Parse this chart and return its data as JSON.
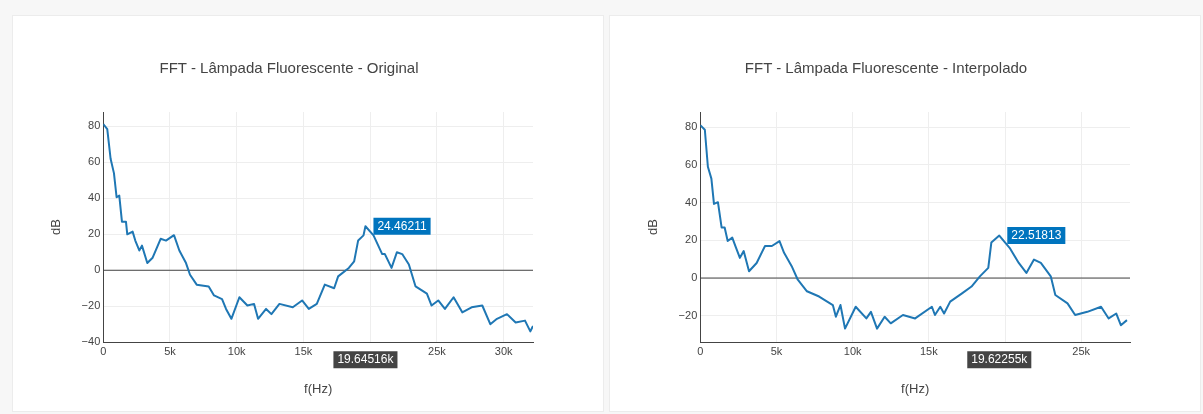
{
  "chart_data": [
    {
      "type": "line",
      "title": "FFT - Lâmpada Fluorescente - Original",
      "xlabel": "f(Hz)",
      "ylabel": "dB",
      "series": [
        {
          "color": "#1f77b4",
          "x": [
            0,
            300,
            550,
            800,
            1000,
            1200,
            1400,
            1700,
            1800,
            2200,
            2400,
            2700,
            2900,
            3300,
            3700,
            4300,
            4700,
            5300,
            5700,
            6200,
            6500,
            7000,
            7900,
            8300,
            8900,
            9200,
            9600,
            10200,
            10800,
            11300,
            11600,
            12200,
            12600,
            13200,
            14200,
            14900,
            15400,
            16000,
            16600,
            17300,
            17600,
            18400,
            18800,
            19100,
            19500,
            19645.16,
            20250,
            20900,
            21100,
            21600,
            22000,
            22400,
            22900,
            23400,
            24250,
            24600,
            25100,
            25600,
            26250,
            26900,
            27600,
            28400,
            29000,
            29500,
            30250,
            30900,
            31600,
            32000,
            32200
          ],
          "values": [
            81.3,
            78.5,
            62,
            54,
            40.6,
            41.5,
            27,
            27,
            20,
            21.5,
            16.5,
            11,
            13.7,
            4,
            7,
            17.5,
            16.5,
            19.5,
            11,
            4,
            -2.5,
            -8,
            -9,
            -14,
            -16,
            -21.5,
            -27,
            -15,
            -19.6,
            -18.7,
            -27,
            -21.5,
            -24.4,
            -18.7,
            -20.6,
            -16.8,
            -21.5,
            -18.7,
            -8,
            -10,
            -3.4,
            1.3,
            5,
            16.6,
            19.4,
            24.46211,
            19.4,
            9,
            9,
            1.3,
            10,
            9,
            3.2,
            -9,
            -13,
            -19.6,
            -16.8,
            -21.5,
            -15,
            -23.4,
            -20.6,
            -19.6,
            -30,
            -27,
            -24.4,
            -29,
            -28,
            -34,
            -31
          ]
        }
      ],
      "xlim": [
        0,
        32200
      ],
      "xticks": [
        0,
        {
          "value": 5000,
          "label": "5k"
        },
        {
          "value": 10000,
          "label": "10k"
        },
        {
          "value": 15000,
          "label": "15k"
        },
        {
          "value": 20000,
          "label": null
        },
        {
          "value": 25000,
          "label": "25k"
        },
        {
          "value": 30000,
          "label": "30k"
        }
      ],
      "ylim": [
        -40,
        88
      ],
      "yticks": [
        -40,
        -20,
        0,
        20,
        40,
        60,
        80
      ],
      "grid": true,
      "legend": false,
      "marker": "none",
      "ref_lines": [
        {
          "axis": "y",
          "value": 0,
          "color": "#444444"
        }
      ],
      "annotations": [
        {
          "text": "24.46211",
          "x": 19645.16,
          "y": 24.46211
        },
        "19.64516k"
      ]
    },
    {
      "type": "line",
      "title": "FFT - Lâmpada Fluorescente - Interpolado",
      "xlabel": "f(Hz)",
      "ylabel": "dB",
      "series": [
        {
          "color": "#1f77b4",
          "x": [
            0,
            300,
            500,
            730,
            900,
            1160,
            1400,
            1600,
            1800,
            2100,
            2300,
            2600,
            2850,
            3200,
            3700,
            4250,
            4700,
            5200,
            5500,
            6000,
            6400,
            7000,
            7800,
            8700,
            8900,
            9200,
            9500,
            10200,
            10900,
            11200,
            11600,
            12100,
            12500,
            13300,
            14100,
            15200,
            15400,
            15750,
            16000,
            16400,
            17200,
            17800,
            18350,
            18900,
            19100,
            19622.55,
            20300,
            20900,
            21400,
            21900,
            22350,
            23000,
            23300,
            24100,
            24600,
            25400,
            26300,
            26800,
            27300,
            27600,
            28000
          ],
          "values": [
            81,
            78.6,
            59,
            52.7,
            39.3,
            40.2,
            26.8,
            26.8,
            19.6,
            21.4,
            17,
            10.7,
            14.3,
            3.6,
            8,
            17,
            17,
            19.6,
            13.4,
            6.3,
            -0.9,
            -7,
            -9.8,
            -14.3,
            -20.5,
            -14.3,
            -26.8,
            -15.2,
            -21.4,
            -17.9,
            -26.8,
            -20.5,
            -24,
            -19.6,
            -21.4,
            -15.2,
            -19.6,
            -15.2,
            -18.8,
            -12.5,
            -8,
            -4.5,
            0.9,
            5.4,
            18.8,
            22.51813,
            16,
            8,
            2.7,
            9.8,
            8,
            0.9,
            -9,
            -13.4,
            -19.6,
            -17.9,
            -15.2,
            -21.4,
            -18.8,
            -25,
            -22.3
          ]
        }
      ],
      "xlim": [
        0,
        28200
      ],
      "xticks": [
        0,
        {
          "value": 5000,
          "label": "5k"
        },
        {
          "value": 10000,
          "label": "10k"
        },
        {
          "value": 15000,
          "label": "15k"
        },
        {
          "value": 20000,
          "label": null
        },
        {
          "value": 25000,
          "label": "25k"
        }
      ],
      "ylim": [
        -34,
        88
      ],
      "yticks": [
        -20,
        0,
        20,
        40,
        60,
        80
      ],
      "grid": true,
      "legend": false,
      "marker": "none",
      "ref_lines": [
        {
          "axis": "y",
          "value": 0,
          "color": "#444444"
        }
      ],
      "annotations": [
        {
          "text": "22.51813",
          "x": 19622.55,
          "y": 22.51813
        },
        "19.62255k"
      ]
    }
  ]
}
